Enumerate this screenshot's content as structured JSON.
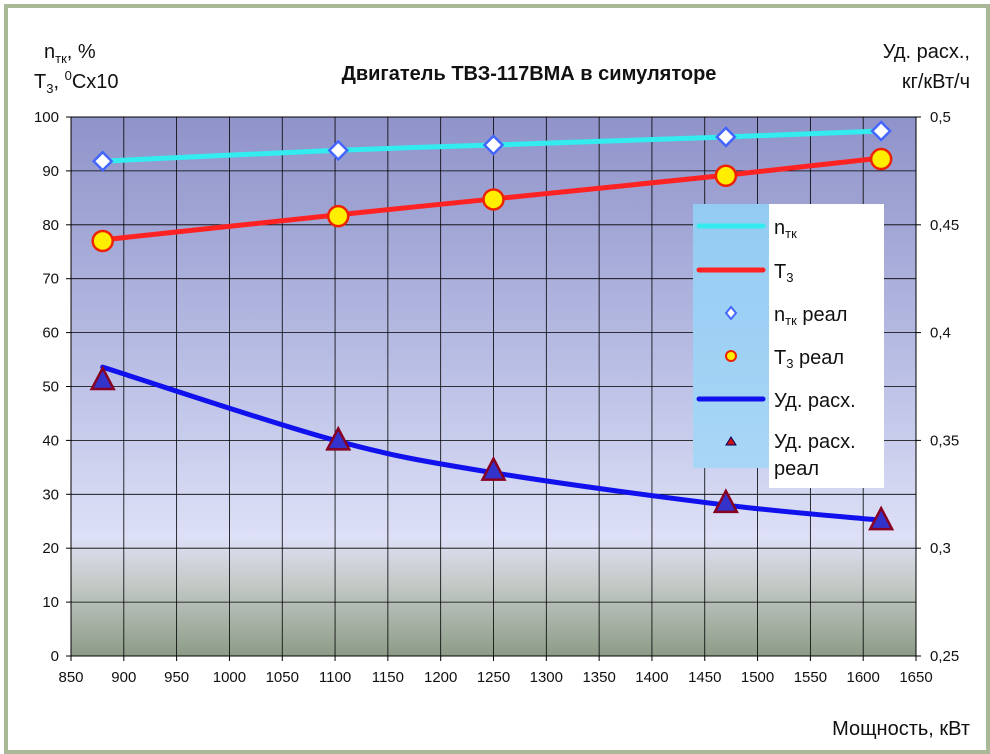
{
  "chart_data": {
    "type": "line",
    "title": "Двигатель ТВЗ-117ВМА в симуляторе",
    "left_axis_label": {
      "line1_main": "n",
      "line1_sub": "тк",
      "line1_rest": ", %",
      "line2_main": "T",
      "line2_sub": "3",
      "line2_mid": ", ",
      "line2_sup": "0",
      "line2_rest": "Cx10"
    },
    "right_axis_label": {
      "line1": "Уд. расх.,",
      "line2": "кг/кВт/ч"
    },
    "xlabel": "Мощность, кВт",
    "xlim": [
      850,
      1650
    ],
    "ylim_left": [
      0,
      100
    ],
    "ylim_right": [
      0.25,
      0.5
    ],
    "x_ticks": [
      "850",
      "900",
      "950",
      "1000",
      "1050",
      "1100",
      "1150",
      "1200",
      "1250",
      "1300",
      "1350",
      "1400",
      "1450",
      "1500",
      "1550",
      "1600",
      "1650"
    ],
    "y_left_ticks": [
      "0",
      "10",
      "20",
      "30",
      "40",
      "50",
      "60",
      "70",
      "80",
      "90",
      "100"
    ],
    "y_right_ticks": [
      "0,25",
      "0,3",
      "0,35",
      "0,4",
      "0,45",
      "0,5"
    ],
    "series": [
      {
        "name": "nтк",
        "label_main": "n",
        "label_sub": "тк",
        "label_rest": "",
        "axis": "left",
        "kind": "curve",
        "color": "#33ecf0",
        "x": [
          880,
          1100,
          1250,
          1470,
          1617
        ],
        "y": [
          91.8,
          93.8,
          94.8,
          96.3,
          97.4
        ]
      },
      {
        "name": "T3",
        "label_main": "T",
        "label_sub": "3",
        "label_rest": "",
        "axis": "left",
        "kind": "curve",
        "color": "#ff2222",
        "x": [
          880,
          1100,
          1250,
          1470,
          1617
        ],
        "y": [
          77.2,
          81.8,
          84.8,
          89.2,
          92.4
        ]
      },
      {
        "name": "nтк реал",
        "label_main": "n",
        "label_sub": "тк",
        "label_rest": " реал",
        "axis": "left",
        "kind": "marker",
        "marker": "diamond",
        "color": "#4466ff",
        "x": [
          880,
          1103,
          1250,
          1470,
          1617
        ],
        "y": [
          91.8,
          93.8,
          94.8,
          96.3,
          97.4
        ]
      },
      {
        "name": "T3 реал",
        "label_main": "T",
        "label_sub": "3",
        "label_rest": " реал",
        "axis": "left",
        "kind": "marker",
        "marker": "circle",
        "color": "#ffee00",
        "x": [
          880,
          1103,
          1250,
          1470,
          1617
        ],
        "y": [
          77.0,
          81.6,
          84.7,
          89.1,
          92.2
        ]
      },
      {
        "name": "Уд. расх.",
        "label_main": "Уд. расх.",
        "label_sub": "",
        "label_rest": "",
        "axis": "right",
        "kind": "curve",
        "color": "#1111ee",
        "x": [
          880,
          1100,
          1250,
          1470,
          1617
        ],
        "y": [
          0.384,
          0.35,
          0.335,
          0.32,
          0.313
        ]
      },
      {
        "name": "Уд. расх. реал",
        "label_main": "Уд. расх.",
        "label_line2": "реал",
        "label_sub": "",
        "label_rest": "",
        "axis": "right",
        "kind": "marker",
        "marker": "triangle",
        "color": "#3333cc",
        "x": [
          880,
          1103,
          1250,
          1470,
          1617
        ],
        "y": [
          0.378,
          0.35,
          0.336,
          0.321,
          0.313
        ]
      }
    ],
    "legend_position": "right-inside",
    "grid": true
  }
}
